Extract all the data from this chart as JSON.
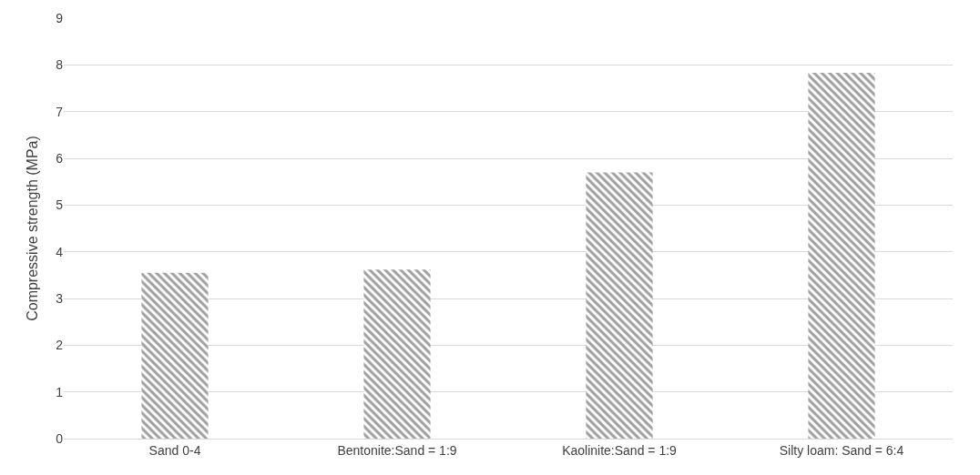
{
  "chart_data": {
    "type": "bar",
    "ylabel": "Compressive strength (MPa)",
    "categories": [
      "Sand 0-4",
      "Bentonite:Sand = 1:9",
      "Kaolinite:Sand = 1:9",
      "Silty loam: Sand = 6:4"
    ],
    "values": [
      3.55,
      3.62,
      5.7,
      7.83
    ],
    "color": "#404040",
    "ylim": [
      0,
      9
    ],
    "yticks": [
      0,
      1,
      2,
      3,
      4,
      5,
      6,
      7,
      8,
      9
    ],
    "grid": "y",
    "legend": false
  }
}
